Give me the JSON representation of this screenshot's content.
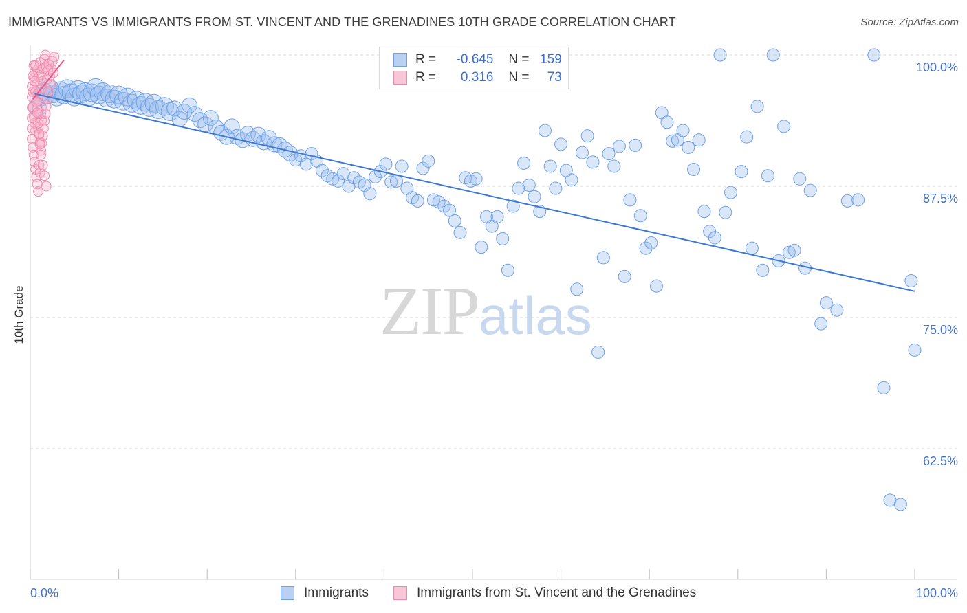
{
  "header": {
    "title": "IMMIGRANTS VS IMMIGRANTS FROM ST. VINCENT AND THE GRENADINES 10TH GRADE CORRELATION CHART",
    "source": "Source: ZipAtlas.com"
  },
  "watermark": {
    "zip": "ZIP",
    "atlas": "atlas"
  },
  "legend": {
    "r_label": "R =",
    "n_label": "N =",
    "rows": [
      {
        "r": "-0.645",
        "n": "159",
        "color": "#6fa0e8"
      },
      {
        "r": "0.316",
        "n": "73",
        "color": "#f08aad"
      }
    ]
  },
  "bottom_legend": {
    "items": [
      {
        "label": "Immigrants",
        "color": "#6fa0e8"
      },
      {
        "label": "Immigrants from St. Vincent and the Grenadines",
        "color": "#f08aad"
      }
    ]
  },
  "chart_data": {
    "type": "scatter",
    "title": "IMMIGRANTS VS IMMIGRANTS FROM ST. VINCENT AND THE GRENADINES 10TH GRADE CORRELATION CHART",
    "xlabel": "",
    "ylabel": "10th Grade",
    "xlim": [
      0,
      100
    ],
    "ylim": [
      50,
      100
    ],
    "x_tick_labels": [
      "0.0%",
      "100.0%"
    ],
    "y_tick_labels": [
      "100.0%",
      "87.5%",
      "75.0%",
      "62.5%"
    ],
    "y_ticks": [
      100,
      87.5,
      75,
      62.5
    ],
    "grid": true,
    "legend_position": "top-center",
    "series": [
      {
        "name": "Immigrants",
        "color": "#6fa0e8",
        "r": -0.645,
        "n": 159,
        "trend": {
          "x": [
            0.5,
            100
          ],
          "y": [
            96.3,
            77.5
          ]
        },
        "points": [
          [
            0.8,
            95.0
          ],
          [
            1.2,
            96.0
          ],
          [
            1.5,
            96.5
          ],
          [
            1.8,
            96.2
          ],
          [
            2.2,
            96.8
          ],
          [
            2.6,
            96.3
          ],
          [
            3.0,
            96.0
          ],
          [
            3.4,
            96.6
          ],
          [
            3.8,
            96.2
          ],
          [
            4.2,
            96.8
          ],
          [
            4.6,
            96.4
          ],
          [
            5.0,
            96.0
          ],
          [
            5.4,
            96.7
          ],
          [
            5.8,
            96.3
          ],
          [
            6.2,
            96.5
          ],
          [
            6.6,
            96.0
          ],
          [
            7.0,
            96.4
          ],
          [
            7.4,
            96.9
          ],
          [
            7.8,
            96.2
          ],
          [
            8.2,
            96.5
          ],
          [
            8.6,
            95.9
          ],
          [
            9.0,
            96.3
          ],
          [
            9.5,
            95.8
          ],
          [
            10.0,
            96.2
          ],
          [
            10.5,
            95.6
          ],
          [
            11.0,
            96.0
          ],
          [
            11.5,
            95.4
          ],
          [
            12.0,
            95.7
          ],
          [
            12.5,
            95.2
          ],
          [
            13.0,
            95.5
          ],
          [
            13.5,
            95.0
          ],
          [
            14.0,
            95.4
          ],
          [
            14.5,
            94.8
          ],
          [
            15.2,
            95.1
          ],
          [
            15.8,
            94.6
          ],
          [
            16.3,
            94.9
          ],
          [
            16.9,
            93.9
          ],
          [
            17.4,
            94.6
          ],
          [
            18.0,
            95.2
          ],
          [
            18.6,
            94.4
          ],
          [
            19.2,
            93.8
          ],
          [
            19.8,
            93.4
          ],
          [
            20.4,
            94.0
          ],
          [
            21.0,
            93.1
          ],
          [
            21.6,
            92.6
          ],
          [
            22.2,
            92.2
          ],
          [
            22.8,
            93.2
          ],
          [
            23.4,
            92.2
          ],
          [
            24.0,
            91.9
          ],
          [
            24.6,
            92.5
          ],
          [
            25.2,
            92.0
          ],
          [
            25.8,
            92.4
          ],
          [
            26.4,
            91.7
          ],
          [
            27.0,
            92.1
          ],
          [
            27.6,
            91.5
          ],
          [
            28.2,
            91.4
          ],
          [
            28.8,
            91.0
          ],
          [
            29.4,
            90.6
          ],
          [
            30.0,
            90.0
          ],
          [
            30.6,
            90.4
          ],
          [
            31.2,
            89.6
          ],
          [
            31.8,
            90.6
          ],
          [
            32.4,
            89.9
          ],
          [
            33.0,
            89.0
          ],
          [
            33.6,
            88.5
          ],
          [
            34.2,
            88.2
          ],
          [
            34.8,
            88.0
          ],
          [
            35.4,
            88.7
          ],
          [
            36.0,
            87.5
          ],
          [
            36.6,
            88.3
          ],
          [
            37.2,
            87.9
          ],
          [
            37.8,
            87.6
          ],
          [
            38.4,
            86.8
          ],
          [
            39.0,
            88.4
          ],
          [
            39.6,
            88.9
          ],
          [
            40.2,
            89.6
          ],
          [
            40.8,
            87.9
          ],
          [
            41.4,
            88.0
          ],
          [
            42.0,
            89.4
          ],
          [
            42.6,
            87.3
          ],
          [
            43.2,
            86.4
          ],
          [
            43.8,
            86.1
          ],
          [
            44.4,
            89.2
          ],
          [
            45.0,
            89.9
          ],
          [
            45.6,
            86.2
          ],
          [
            46.2,
            86.0
          ],
          [
            46.8,
            85.6
          ],
          [
            47.4,
            85.2
          ],
          [
            48.0,
            84.2
          ],
          [
            48.6,
            83.1
          ],
          [
            49.2,
            88.3
          ],
          [
            49.8,
            88.0
          ],
          [
            50.4,
            88.2
          ],
          [
            51.0,
            81.7
          ],
          [
            51.6,
            84.6
          ],
          [
            52.2,
            83.7
          ],
          [
            52.8,
            84.6
          ],
          [
            53.4,
            82.5
          ],
          [
            54.0,
            79.5
          ],
          [
            54.6,
            85.6
          ],
          [
            55.2,
            87.3
          ],
          [
            55.8,
            89.7
          ],
          [
            56.4,
            87.6
          ],
          [
            57.0,
            86.5
          ],
          [
            57.6,
            85.1
          ],
          [
            58.2,
            92.8
          ],
          [
            58.8,
            89.4
          ],
          [
            59.4,
            87.3
          ],
          [
            60.0,
            91.5
          ],
          [
            60.6,
            89.0
          ],
          [
            61.2,
            88.1
          ],
          [
            61.8,
            77.7
          ],
          [
            62.4,
            90.7
          ],
          [
            63.0,
            92.3
          ],
          [
            63.6,
            89.8
          ],
          [
            64.2,
            71.7
          ],
          [
            64.8,
            80.7
          ],
          [
            65.4,
            90.6
          ],
          [
            66.0,
            89.4
          ],
          [
            66.6,
            91.3
          ],
          [
            67.2,
            78.9
          ],
          [
            67.8,
            86.2
          ],
          [
            68.4,
            91.4
          ],
          [
            69.0,
            84.7
          ],
          [
            69.6,
            81.6
          ],
          [
            70.2,
            82.1
          ],
          [
            70.8,
            78.0
          ],
          [
            71.4,
            94.5
          ],
          [
            72.0,
            93.6
          ],
          [
            72.6,
            91.8
          ],
          [
            73.2,
            91.9
          ],
          [
            73.8,
            92.8
          ],
          [
            74.4,
            91.2
          ],
          [
            75.0,
            89.1
          ],
          [
            75.6,
            91.9
          ],
          [
            76.2,
            85.1
          ],
          [
            76.8,
            83.2
          ],
          [
            77.4,
            82.6
          ],
          [
            78.0,
            100.0
          ],
          [
            78.6,
            85.0
          ],
          [
            79.2,
            86.9
          ],
          [
            80.4,
            88.9
          ],
          [
            81.0,
            92.2
          ],
          [
            81.6,
            81.6
          ],
          [
            82.2,
            95.1
          ],
          [
            82.8,
            79.5
          ],
          [
            83.4,
            88.5
          ],
          [
            84.0,
            100.0
          ],
          [
            84.6,
            80.4
          ],
          [
            85.2,
            93.2
          ],
          [
            85.8,
            81.2
          ],
          [
            86.4,
            81.4
          ],
          [
            87.0,
            88.2
          ],
          [
            87.6,
            79.7
          ],
          [
            88.2,
            87.1
          ],
          [
            89.4,
            74.4
          ],
          [
            90.0,
            76.4
          ],
          [
            91.2,
            75.7
          ],
          [
            92.4,
            86.1
          ],
          [
            93.6,
            86.2
          ],
          [
            95.4,
            100.0
          ],
          [
            97.2,
            57.6
          ],
          [
            98.4,
            57.2
          ],
          [
            99.6,
            78.5
          ],
          [
            100.0,
            71.9
          ],
          [
            96.5,
            68.3
          ]
        ]
      },
      {
        "name": "Immigrants from St. Vincent and the Grenadines",
        "color": "#f08aad",
        "r": 0.316,
        "n": 73,
        "trend": {
          "x": [
            0.3,
            3.8
          ],
          "y": [
            95.8,
            99.5
          ]
        },
        "points": [
          [
            0.3,
            96.5
          ],
          [
            0.4,
            97.8
          ],
          [
            0.5,
            98.4
          ],
          [
            0.6,
            99.0
          ],
          [
            0.7,
            97.2
          ],
          [
            0.8,
            98.6
          ],
          [
            0.9,
            96.1
          ],
          [
            1.0,
            97.9
          ],
          [
            1.1,
            99.3
          ],
          [
            1.2,
            98.1
          ],
          [
            1.3,
            96.8
          ],
          [
            1.4,
            97.5
          ],
          [
            1.5,
            98.8
          ],
          [
            1.6,
            99.6
          ],
          [
            1.7,
            100.0
          ],
          [
            1.8,
            98.9
          ],
          [
            1.9,
            97.7
          ],
          [
            2.0,
            98.5
          ],
          [
            2.1,
            99.1
          ],
          [
            2.2,
            98.0
          ],
          [
            2.3,
            97.2
          ],
          [
            2.4,
            98.7
          ],
          [
            2.5,
            99.4
          ],
          [
            2.6,
            98.3
          ],
          [
            2.7,
            99.8
          ],
          [
            0.3,
            95.0
          ],
          [
            0.4,
            94.2
          ],
          [
            0.5,
            93.5
          ],
          [
            0.6,
            92.8
          ],
          [
            0.7,
            95.6
          ],
          [
            0.8,
            94.9
          ],
          [
            0.9,
            93.1
          ],
          [
            1.0,
            92.4
          ],
          [
            1.1,
            91.7
          ],
          [
            1.2,
            94.4
          ],
          [
            1.3,
            93.8
          ],
          [
            0.3,
            91.2
          ],
          [
            0.4,
            90.5
          ],
          [
            0.5,
            89.8
          ],
          [
            0.6,
            89.1
          ],
          [
            0.7,
            88.4
          ],
          [
            0.8,
            87.7
          ],
          [
            0.9,
            87.0
          ],
          [
            1.0,
            89.5
          ],
          [
            1.1,
            88.8
          ],
          [
            1.2,
            90.9
          ],
          [
            1.3,
            91.6
          ],
          [
            1.4,
            92.3
          ],
          [
            1.5,
            93.0
          ],
          [
            1.6,
            93.7
          ],
          [
            1.7,
            94.4
          ],
          [
            1.8,
            95.1
          ],
          [
            1.9,
            95.8
          ],
          [
            2.0,
            96.5
          ],
          [
            0.2,
            97.0
          ],
          [
            0.2,
            96.0
          ],
          [
            0.2,
            95.0
          ],
          [
            0.2,
            94.0
          ],
          [
            0.2,
            93.0
          ],
          [
            0.2,
            92.0
          ],
          [
            0.3,
            98.0
          ],
          [
            0.4,
            99.0
          ],
          [
            0.5,
            97.5
          ],
          [
            0.6,
            96.5
          ],
          [
            0.7,
            95.5
          ],
          [
            0.8,
            94.5
          ],
          [
            0.9,
            93.5
          ],
          [
            1.0,
            92.5
          ],
          [
            1.1,
            91.5
          ],
          [
            1.2,
            90.5
          ],
          [
            1.4,
            89.5
          ],
          [
            1.6,
            88.5
          ],
          [
            1.8,
            87.5
          ]
        ]
      }
    ]
  }
}
